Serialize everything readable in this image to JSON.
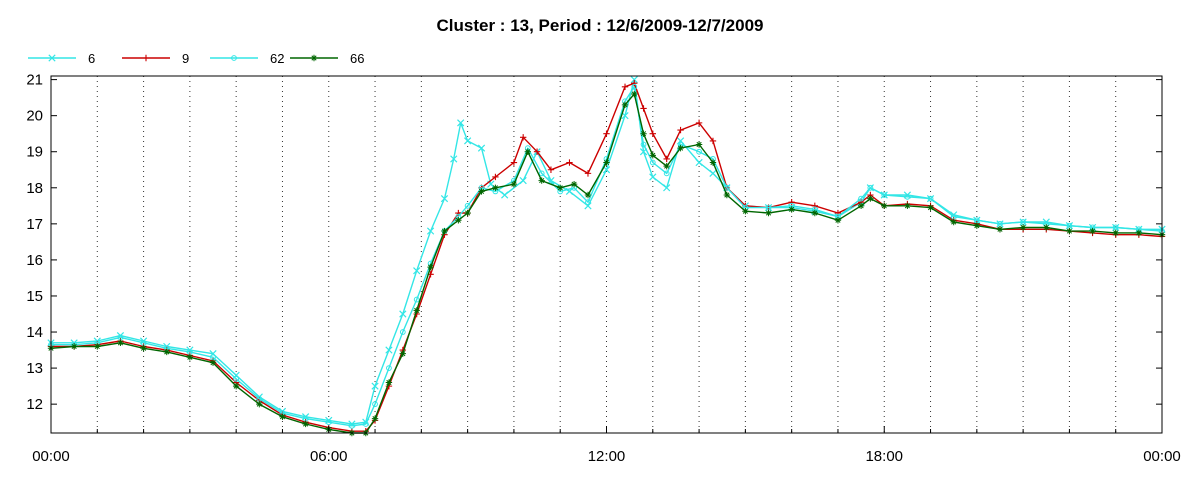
{
  "chart_data": {
    "type": "line",
    "title": "Cluster : 13, Period : 12/6/2009-12/7/2009",
    "xlabel": "",
    "ylabel": "",
    "x_tick_labels": [
      "00:00",
      "06:00",
      "12:00",
      "18:00",
      "00:00"
    ],
    "x_tick_hours": [
      0,
      6,
      12,
      18,
      24
    ],
    "xlim_hours": [
      0,
      24
    ],
    "ylim": [
      11.2,
      21.1
    ],
    "y_ticks": [
      12,
      13,
      14,
      15,
      16,
      17,
      18,
      19,
      20,
      21
    ],
    "grid": "dotted vertical lines every hour; y ticks on both sides",
    "legend_position": "top-left",
    "series": [
      {
        "name": "6",
        "color": "#33e6e6",
        "marker": "x",
        "points": [
          [
            0,
            13.7
          ],
          [
            0.5,
            13.7
          ],
          [
            1,
            13.75
          ],
          [
            1.5,
            13.9
          ],
          [
            2,
            13.75
          ],
          [
            2.5,
            13.6
          ],
          [
            3,
            13.5
          ],
          [
            3.5,
            13.4
          ],
          [
            4,
            12.8
          ],
          [
            4.5,
            12.2
          ],
          [
            5,
            11.8
          ],
          [
            5.5,
            11.65
          ],
          [
            6,
            11.55
          ],
          [
            6.5,
            11.45
          ],
          [
            6.8,
            11.5
          ],
          [
            7,
            12.5
          ],
          [
            7.3,
            13.5
          ],
          [
            7.6,
            14.5
          ],
          [
            7.9,
            15.7
          ],
          [
            8.2,
            16.8
          ],
          [
            8.5,
            17.7
          ],
          [
            8.7,
            18.8
          ],
          [
            8.85,
            19.8
          ],
          [
            9,
            19.3
          ],
          [
            9.3,
            19.1
          ],
          [
            9.5,
            18.1
          ],
          [
            9.8,
            17.8
          ],
          [
            10.2,
            18.2
          ],
          [
            10.5,
            19.0
          ],
          [
            10.8,
            18.2
          ],
          [
            11.2,
            17.9
          ],
          [
            11.6,
            17.5
          ],
          [
            12,
            18.5
          ],
          [
            12.4,
            20.0
          ],
          [
            12.6,
            21.0
          ],
          [
            12.8,
            19.0
          ],
          [
            13,
            18.3
          ],
          [
            13.3,
            18.0
          ],
          [
            13.6,
            19.3
          ],
          [
            14,
            18.7
          ],
          [
            14.3,
            18.4
          ],
          [
            14.6,
            18.0
          ],
          [
            15,
            17.5
          ],
          [
            15.5,
            17.45
          ],
          [
            16,
            17.45
          ],
          [
            16.5,
            17.35
          ],
          [
            17,
            17.2
          ],
          [
            17.5,
            17.6
          ],
          [
            17.7,
            18.0
          ],
          [
            18,
            17.8
          ],
          [
            18.5,
            17.8
          ],
          [
            19,
            17.7
          ],
          [
            19.5,
            17.25
          ],
          [
            20,
            17.1
          ],
          [
            20.5,
            17.0
          ],
          [
            21,
            17.05
          ],
          [
            21.5,
            17.05
          ],
          [
            22,
            16.95
          ],
          [
            22.5,
            16.9
          ],
          [
            23,
            16.9
          ],
          [
            23.5,
            16.85
          ],
          [
            24,
            16.85
          ]
        ]
      },
      {
        "name": "9",
        "color": "#cc0000",
        "marker": "+",
        "points": [
          [
            0,
            13.6
          ],
          [
            0.5,
            13.6
          ],
          [
            1,
            13.65
          ],
          [
            1.5,
            13.75
          ],
          [
            2,
            13.6
          ],
          [
            2.5,
            13.5
          ],
          [
            3,
            13.35
          ],
          [
            3.5,
            13.2
          ],
          [
            4,
            12.6
          ],
          [
            4.5,
            12.1
          ],
          [
            5,
            11.7
          ],
          [
            5.5,
            11.5
          ],
          [
            6,
            11.35
          ],
          [
            6.5,
            11.25
          ],
          [
            6.8,
            11.25
          ],
          [
            7,
            11.55
          ],
          [
            7.3,
            12.5
          ],
          [
            7.6,
            13.5
          ],
          [
            7.9,
            14.5
          ],
          [
            8.2,
            15.6
          ],
          [
            8.5,
            16.7
          ],
          [
            8.8,
            17.3
          ],
          [
            9,
            17.3
          ],
          [
            9.3,
            18.0
          ],
          [
            9.6,
            18.3
          ],
          [
            10,
            18.7
          ],
          [
            10.2,
            19.4
          ],
          [
            10.5,
            19.0
          ],
          [
            10.8,
            18.5
          ],
          [
            11.2,
            18.7
          ],
          [
            11.6,
            18.4
          ],
          [
            12,
            19.5
          ],
          [
            12.4,
            20.8
          ],
          [
            12.6,
            20.9
          ],
          [
            12.8,
            20.2
          ],
          [
            13,
            19.5
          ],
          [
            13.3,
            18.8
          ],
          [
            13.6,
            19.6
          ],
          [
            14,
            19.8
          ],
          [
            14.3,
            19.3
          ],
          [
            14.6,
            18.0
          ],
          [
            15,
            17.5
          ],
          [
            15.5,
            17.45
          ],
          [
            16,
            17.6
          ],
          [
            16.5,
            17.5
          ],
          [
            17,
            17.3
          ],
          [
            17.5,
            17.6
          ],
          [
            17.7,
            17.8
          ],
          [
            18,
            17.5
          ],
          [
            18.5,
            17.55
          ],
          [
            19,
            17.5
          ],
          [
            19.5,
            17.1
          ],
          [
            20,
            17.0
          ],
          [
            20.5,
            16.85
          ],
          [
            21,
            16.85
          ],
          [
            21.5,
            16.85
          ],
          [
            22,
            16.8
          ],
          [
            22.5,
            16.75
          ],
          [
            23,
            16.7
          ],
          [
            23.5,
            16.7
          ],
          [
            24,
            16.65
          ]
        ]
      },
      {
        "name": "62",
        "color": "#33e6e6",
        "marker": "o",
        "points": [
          [
            0,
            13.65
          ],
          [
            0.5,
            13.65
          ],
          [
            1,
            13.7
          ],
          [
            1.5,
            13.85
          ],
          [
            2,
            13.7
          ],
          [
            2.5,
            13.55
          ],
          [
            3,
            13.45
          ],
          [
            3.5,
            13.3
          ],
          [
            4,
            12.7
          ],
          [
            4.5,
            12.15
          ],
          [
            5,
            11.75
          ],
          [
            5.5,
            11.6
          ],
          [
            6,
            11.5
          ],
          [
            6.5,
            11.4
          ],
          [
            6.8,
            11.45
          ],
          [
            7,
            12.0
          ],
          [
            7.3,
            13.0
          ],
          [
            7.6,
            14.0
          ],
          [
            7.9,
            14.9
          ],
          [
            8.2,
            15.9
          ],
          [
            8.5,
            16.8
          ],
          [
            8.8,
            17.2
          ],
          [
            9,
            17.5
          ],
          [
            9.3,
            18.0
          ],
          [
            9.6,
            17.9
          ],
          [
            10,
            18.2
          ],
          [
            10.3,
            19.1
          ],
          [
            10.6,
            18.4
          ],
          [
            11,
            17.9
          ],
          [
            11.3,
            18.0
          ],
          [
            11.6,
            17.6
          ],
          [
            12,
            18.8
          ],
          [
            12.4,
            20.4
          ],
          [
            12.6,
            20.8
          ],
          [
            12.8,
            19.2
          ],
          [
            13,
            18.7
          ],
          [
            13.3,
            18.4
          ],
          [
            13.6,
            19.2
          ],
          [
            14,
            19.0
          ],
          [
            14.3,
            18.8
          ],
          [
            14.6,
            18.0
          ],
          [
            15,
            17.45
          ],
          [
            15.5,
            17.45
          ],
          [
            16,
            17.5
          ],
          [
            16.5,
            17.4
          ],
          [
            17,
            17.2
          ],
          [
            17.5,
            17.7
          ],
          [
            17.7,
            18.0
          ],
          [
            18,
            17.8
          ],
          [
            18.5,
            17.75
          ],
          [
            19,
            17.7
          ],
          [
            19.5,
            17.2
          ],
          [
            20,
            17.1
          ],
          [
            20.5,
            17.0
          ],
          [
            21,
            17.05
          ],
          [
            21.5,
            17.0
          ],
          [
            22,
            16.95
          ],
          [
            22.5,
            16.9
          ],
          [
            23,
            16.9
          ],
          [
            23.5,
            16.85
          ],
          [
            24,
            16.8
          ]
        ]
      },
      {
        "name": "66",
        "color": "#006600",
        "marker": "*",
        "points": [
          [
            0,
            13.55
          ],
          [
            0.5,
            13.6
          ],
          [
            1,
            13.6
          ],
          [
            1.5,
            13.7
          ],
          [
            2,
            13.55
          ],
          [
            2.5,
            13.45
          ],
          [
            3,
            13.3
          ],
          [
            3.5,
            13.15
          ],
          [
            4,
            12.5
          ],
          [
            4.5,
            12.0
          ],
          [
            5,
            11.65
          ],
          [
            5.5,
            11.45
          ],
          [
            6,
            11.3
          ],
          [
            6.5,
            11.2
          ],
          [
            6.8,
            11.2
          ],
          [
            7,
            11.6
          ],
          [
            7.3,
            12.6
          ],
          [
            7.6,
            13.4
          ],
          [
            7.9,
            14.6
          ],
          [
            8.2,
            15.8
          ],
          [
            8.5,
            16.8
          ],
          [
            8.8,
            17.1
          ],
          [
            9,
            17.3
          ],
          [
            9.3,
            17.9
          ],
          [
            9.6,
            18.0
          ],
          [
            10,
            18.1
          ],
          [
            10.3,
            19.0
          ],
          [
            10.6,
            18.2
          ],
          [
            11,
            18.0
          ],
          [
            11.3,
            18.1
          ],
          [
            11.6,
            17.8
          ],
          [
            12,
            18.7
          ],
          [
            12.4,
            20.3
          ],
          [
            12.6,
            20.6
          ],
          [
            12.8,
            19.5
          ],
          [
            13,
            18.9
          ],
          [
            13.3,
            18.6
          ],
          [
            13.6,
            19.1
          ],
          [
            14,
            19.2
          ],
          [
            14.3,
            18.7
          ],
          [
            14.6,
            17.8
          ],
          [
            15,
            17.35
          ],
          [
            15.5,
            17.3
          ],
          [
            16,
            17.4
          ],
          [
            16.5,
            17.3
          ],
          [
            17,
            17.1
          ],
          [
            17.5,
            17.5
          ],
          [
            17.7,
            17.7
          ],
          [
            18,
            17.5
          ],
          [
            18.5,
            17.5
          ],
          [
            19,
            17.45
          ],
          [
            19.5,
            17.05
          ],
          [
            20,
            16.95
          ],
          [
            20.5,
            16.85
          ],
          [
            21,
            16.9
          ],
          [
            21.5,
            16.9
          ],
          [
            22,
            16.8
          ],
          [
            22.5,
            16.8
          ],
          [
            23,
            16.75
          ],
          [
            23.5,
            16.75
          ],
          [
            24,
            16.7
          ]
        ]
      }
    ]
  }
}
